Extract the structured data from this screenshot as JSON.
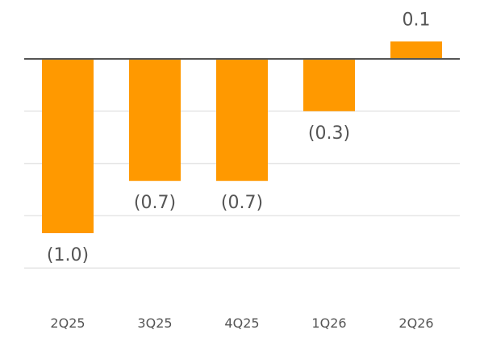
{
  "chart_data": {
    "type": "bar",
    "categories": [
      "2Q25",
      "3Q25",
      "4Q25",
      "1Q26",
      "2Q26"
    ],
    "values": [
      -1.0,
      -0.7,
      -0.7,
      -0.3,
      0.1
    ],
    "data_labels": [
      "(1.0)",
      "(0.7)",
      "(0.7)",
      "(0.3)",
      "0.1"
    ],
    "ylim": [
      -1.2,
      0.1
    ],
    "grid": true,
    "bar_color": "#FF9900",
    "zero_line_color": "#555555",
    "grid_color": "#E6E6E6",
    "label_color": "#555555"
  }
}
